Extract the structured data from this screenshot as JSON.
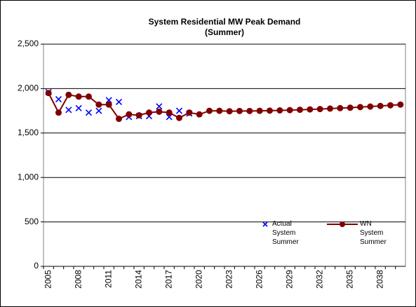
{
  "chart_data": {
    "type": "line",
    "title": "System Residential MW Peak Demand",
    "subtitle": "(Summer)",
    "categories": [
      "2005",
      null,
      null,
      "2008",
      null,
      null,
      "2011",
      null,
      null,
      "2014",
      null,
      null,
      "2017",
      null,
      null,
      "2020",
      null,
      null,
      "2023",
      null,
      null,
      "2026",
      null,
      null,
      "2029",
      null,
      null,
      "2032",
      null,
      null,
      "2035",
      null,
      null,
      "2038",
      null,
      null
    ],
    "series": [
      {
        "name": "Actual System Summer",
        "color": "#0000ff",
        "marker": "x",
        "values": [
          1960,
          1880,
          1760,
          1780,
          1730,
          1750,
          1870,
          1850,
          1680,
          1690,
          1690,
          1800,
          1680,
          1750,
          1720,
          null,
          null,
          null,
          null,
          null,
          null,
          null,
          null,
          null,
          null,
          null,
          null,
          null,
          null,
          null,
          null,
          null,
          null,
          null,
          null,
          null
        ]
      },
      {
        "name": "WN System Summer",
        "color": "#800000",
        "marker": "circle",
        "values": [
          1950,
          1730,
          1930,
          1910,
          1910,
          1820,
          1820,
          1660,
          1710,
          1700,
          1730,
          1740,
          1730,
          1670,
          1730,
          1710,
          1750,
          1750,
          1745,
          1748,
          1748,
          1750,
          1752,
          1755,
          1758,
          1762,
          1766,
          1770,
          1775,
          1780,
          1785,
          1792,
          1798,
          1805,
          1812,
          1820
        ]
      }
    ],
    "ylim": [
      0,
      2500
    ],
    "yticks": [
      0,
      500,
      {
        "value": 1000,
        "label": "1,000"
      },
      {
        "value": 1500,
        "label": "1,500"
      },
      {
        "value": 2000,
        "label": "2,000"
      },
      {
        "value": 2500,
        "label": "2,500"
      }
    ],
    "grid": true
  }
}
